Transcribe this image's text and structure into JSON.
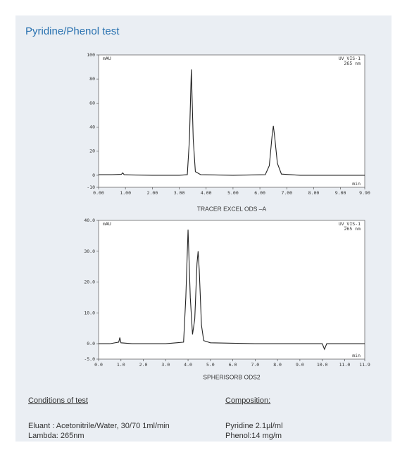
{
  "header": {
    "title": "Pyridine/Phenol test"
  },
  "chart_data": [
    {
      "type": "line",
      "subtitle": "TRACER EXCEL ODS –A",
      "y_label": "mAU",
      "x_label": "min",
      "annotations": [
        "UV_VIS-1",
        "265 nm"
      ],
      "color": "#222222",
      "x": [
        0,
        0.5,
        0.85,
        0.9,
        0.95,
        1.2,
        2.0,
        3.0,
        3.3,
        3.38,
        3.45,
        3.52,
        3.6,
        3.8,
        5.0,
        6.2,
        6.35,
        6.45,
        6.5,
        6.55,
        6.65,
        6.8,
        7.5,
        9.0,
        9.9
      ],
      "values": [
        0.5,
        0.5,
        0.8,
        2,
        0.5,
        0.3,
        0,
        0,
        0.5,
        30,
        88,
        30,
        3,
        0.5,
        0,
        0.5,
        8,
        32,
        41,
        32,
        10,
        1,
        0,
        0,
        0
      ],
      "xlim": [
        0,
        9.9
      ],
      "xticks": [
        {
          "value": 0,
          "label": "0.00"
        },
        {
          "value": 1,
          "label": "1.00"
        },
        {
          "value": 2,
          "label": "2.00"
        },
        {
          "value": 3,
          "label": "3.00"
        },
        {
          "value": 4,
          "label": "4.00"
        },
        {
          "value": 5,
          "label": "5.00"
        },
        {
          "value": 6,
          "label": "6.00"
        },
        {
          "value": 7,
          "label": "7.00"
        },
        {
          "value": 8,
          "label": "8.00"
        },
        {
          "value": 9,
          "label": "9.00"
        },
        {
          "value": 9.9,
          "label": "9.90"
        }
      ],
      "ylim": [
        -10,
        100
      ],
      "yticks": [
        -10,
        0,
        20,
        40,
        60,
        80,
        100
      ]
    },
    {
      "type": "line",
      "subtitle": "SPHERISORB ODS2",
      "y_label": "mAU",
      "x_label": "min",
      "annotations": [
        "UV_VIS-1",
        "265 nm"
      ],
      "color": "#222222",
      "x": [
        0,
        0.5,
        0.9,
        0.95,
        1.0,
        1.5,
        3.0,
        3.8,
        3.9,
        4.0,
        4.1,
        4.2,
        4.3,
        4.4,
        4.45,
        4.5,
        4.6,
        4.7,
        5.0,
        7.0,
        10.0,
        10.1,
        10.2,
        11.0,
        11.9
      ],
      "values": [
        0,
        0,
        0.5,
        2,
        0.3,
        0,
        0,
        0.5,
        15,
        37,
        15,
        3,
        8,
        26,
        30,
        24,
        6,
        1,
        0.3,
        0,
        0,
        -1.8,
        0,
        0,
        0
      ],
      "xlim": [
        0,
        11.9
      ],
      "xticks": [
        {
          "value": 0,
          "label": "0.0"
        },
        {
          "value": 1,
          "label": "1.0"
        },
        {
          "value": 2,
          "label": "2.0"
        },
        {
          "value": 3,
          "label": "3.0"
        },
        {
          "value": 4,
          "label": "4.0"
        },
        {
          "value": 5,
          "label": "5.0"
        },
        {
          "value": 6,
          "label": "6.0"
        },
        {
          "value": 7,
          "label": "7.0"
        },
        {
          "value": 8,
          "label": "8.0"
        },
        {
          "value": 9,
          "label": "9.0"
        },
        {
          "value": 10,
          "label": "10.0"
        },
        {
          "value": 11,
          "label": "11.0"
        },
        {
          "value": 11.9,
          "label": "11.9"
        }
      ],
      "ylim": [
        -5,
        40
      ],
      "yticks": [
        {
          "value": -5,
          "label": "-5.0"
        },
        {
          "value": 0,
          "label": "0.0"
        },
        {
          "value": 10,
          "label": "10.0"
        },
        {
          "value": 20,
          "label": "20.0"
        },
        {
          "value": 30,
          "label": "30.0"
        },
        {
          "value": 40,
          "label": "40.0"
        }
      ]
    }
  ],
  "conditions": {
    "heading": "Conditions of test",
    "lines": [
      "Eluant : Acetonitrile/Water, 30/70 1ml/min",
      "Lambda: 265nm"
    ]
  },
  "composition": {
    "heading": "Composition:",
    "lines": [
      "Pyridine 2.1µl/ml",
      "Phenol:14 mg/m"
    ]
  }
}
